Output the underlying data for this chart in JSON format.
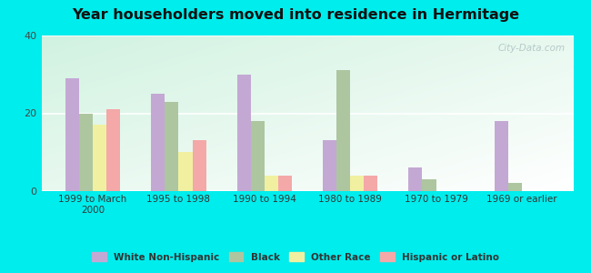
{
  "title": "Year householders moved into residence in Hermitage",
  "categories": [
    "1999 to March\n2000",
    "1995 to 1998",
    "1990 to 1994",
    "1980 to 1989",
    "1970 to 1979",
    "1969 or earlier"
  ],
  "series": {
    "White Non-Hispanic": [
      29,
      25,
      30,
      13,
      6,
      18
    ],
    "Black": [
      20,
      23,
      18,
      31,
      3,
      2
    ],
    "Other Race": [
      17,
      10,
      4,
      4,
      0,
      0
    ],
    "Hispanic or Latino": [
      21,
      13,
      4,
      4,
      0,
      0
    ]
  },
  "colors": {
    "White Non-Hispanic": "#c4a8d4",
    "Black": "#adc6a0",
    "Other Race": "#f0f0a0",
    "Hispanic or Latino": "#f4a8a8"
  },
  "ylim": [
    0,
    40
  ],
  "yticks": [
    0,
    20,
    40
  ],
  "background_color": "#00eded",
  "watermark": "City-Data.com",
  "bar_width": 0.16
}
